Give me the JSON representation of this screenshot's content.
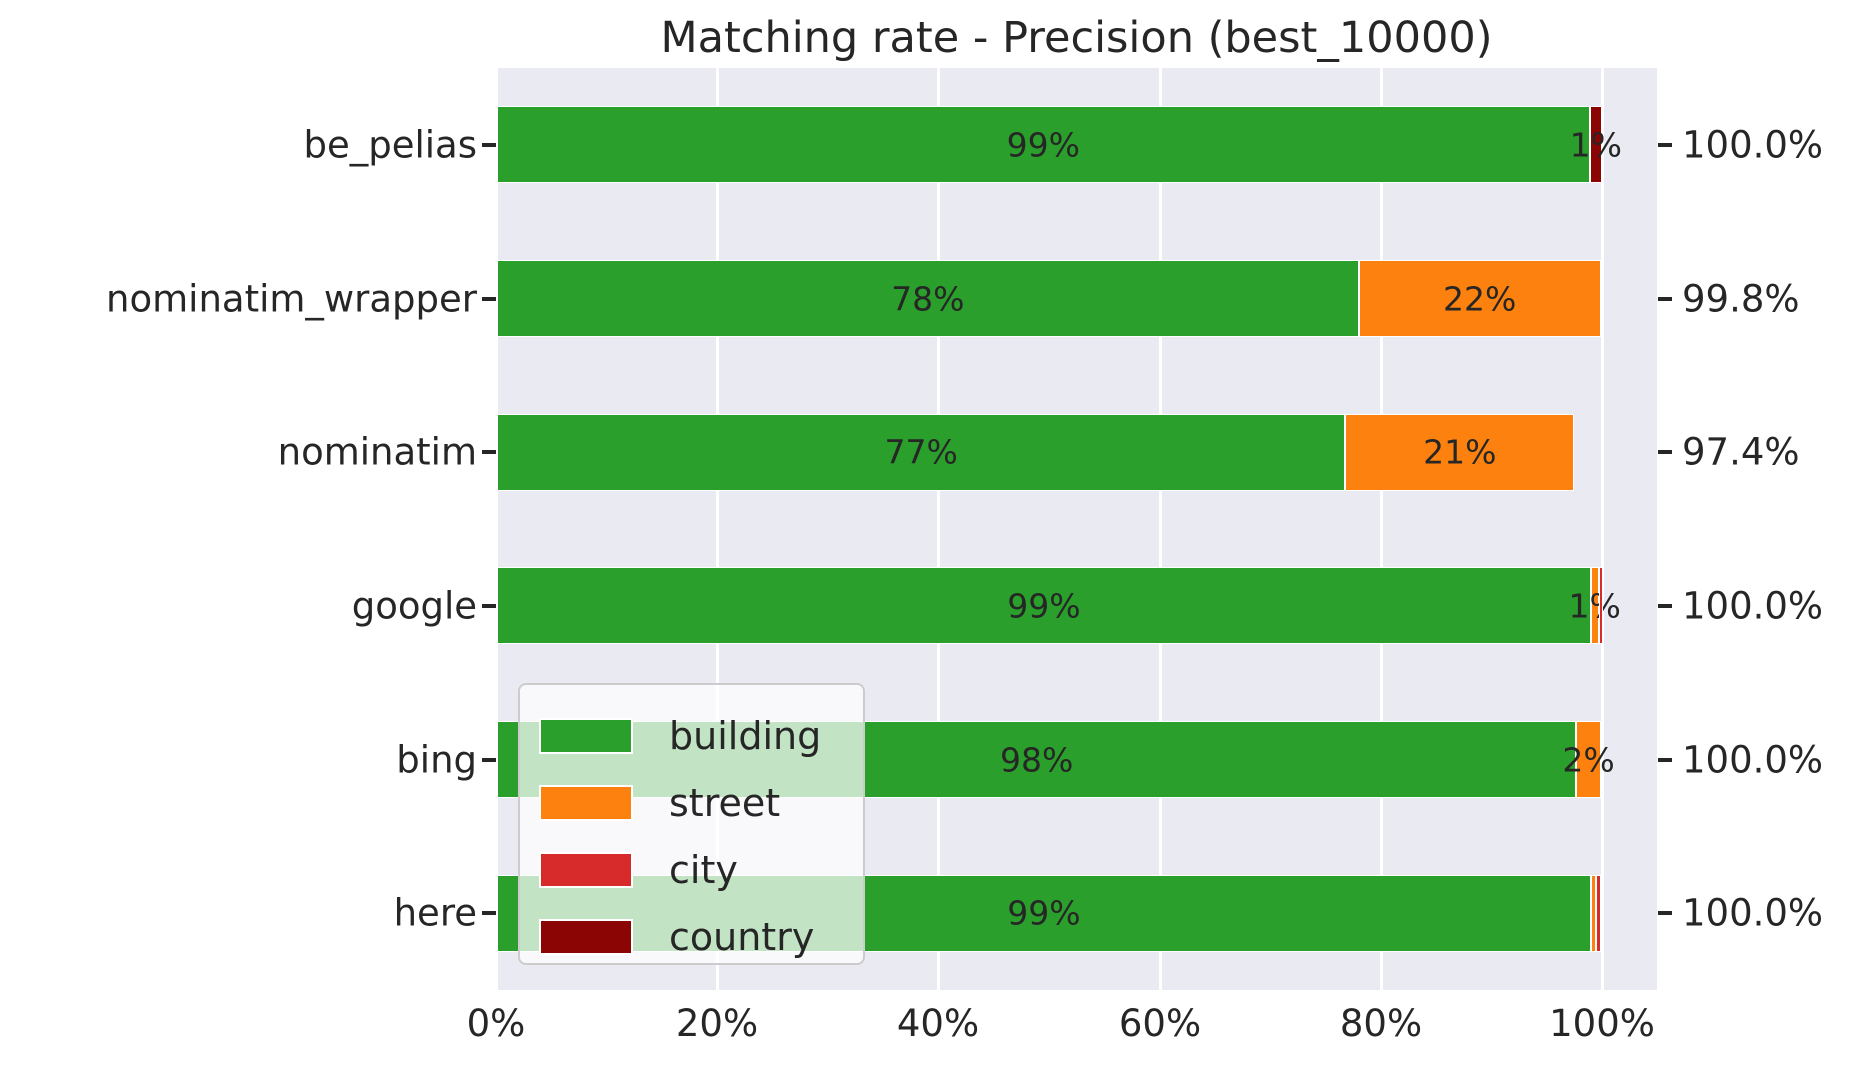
{
  "chart_data": {
    "type": "bar",
    "orientation": "horizontal",
    "stacked": true,
    "title": "Matching rate - Precision (best_10000)",
    "categories": [
      "be_pelias",
      "nominatim_wrapper",
      "nominatim",
      "google",
      "bing",
      "here"
    ],
    "series": [
      {
        "name": "building",
        "color": "#2a9f2b",
        "values": [
          98.8,
          77.9,
          76.7,
          98.9,
          97.6,
          98.9
        ],
        "labels": [
          "99%",
          "78%",
          "77%",
          "99%",
          "98%",
          "99%"
        ]
      },
      {
        "name": "street",
        "color": "#fd810e",
        "values": [
          0,
          21.9,
          20.7,
          0.7,
          2.2,
          0.5
        ],
        "labels": [
          null,
          "22%",
          "21%",
          "1%",
          "2%",
          null
        ]
      },
      {
        "name": "city",
        "color": "#d62a2b",
        "values": [
          0,
          0,
          0,
          0.4,
          0,
          0.4
        ],
        "labels": [
          null,
          null,
          null,
          null,
          null,
          null
        ]
      },
      {
        "name": "country",
        "color": "#8b0505",
        "values": [
          1.1,
          0,
          0,
          0,
          0,
          0
        ],
        "labels": [
          "1%",
          null,
          null,
          null,
          null,
          null
        ]
      }
    ],
    "totals": [
      "100.0%",
      "99.8%",
      "97.4%",
      "100.0%",
      "100.0%",
      "100.0%"
    ],
    "x_ticks": {
      "labels": [
        "0%",
        "20%",
        "40%",
        "60%",
        "80%",
        "100%"
      ],
      "values": [
        0,
        20,
        40,
        60,
        80,
        100
      ]
    },
    "xlim": [
      0,
      104.9
    ],
    "legend_entries": [
      "building",
      "street",
      "city",
      "country"
    ],
    "style": {
      "plot_background": "#eaeaf2",
      "grid_color": "#ffffff",
      "text_color": "#262626"
    }
  }
}
